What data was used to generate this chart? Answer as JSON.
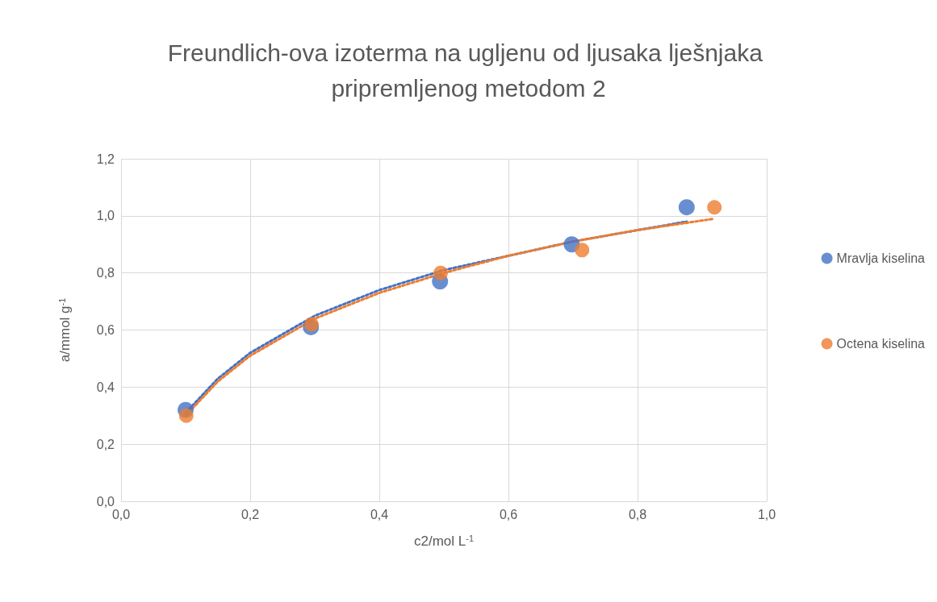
{
  "chart_data": {
    "type": "scatter",
    "title": "Freundlich-ova izoterma na ugljenu od ljusaka lješnjaka pripremljenog metodom 2",
    "xlabel": "c2/mol L$^{-1}$",
    "ylabel": "a/mmol g$^{-1}$",
    "xlim": [
      0,
      1
    ],
    "ylim": [
      0,
      1.2
    ],
    "xticks": [
      {
        "value": 0,
        "label": "0,0"
      },
      {
        "value": 0.2,
        "label": "0,2"
      },
      {
        "value": 0.4,
        "label": "0,4"
      },
      {
        "value": 0.6,
        "label": "0,6"
      },
      {
        "value": 0.8,
        "label": "0,8"
      },
      {
        "value": 1,
        "label": "1,0"
      }
    ],
    "yticks": [
      {
        "value": 0,
        "label": "0,0"
      },
      {
        "value": 0.2,
        "label": "0,2"
      },
      {
        "value": 0.4,
        "label": "0,4"
      },
      {
        "value": 0.6,
        "label": "0,6"
      },
      {
        "value": 0.8,
        "label": "0,8"
      },
      {
        "value": 1,
        "label": "1,0"
      },
      {
        "value": 1.2,
        "label": "1,2"
      }
    ],
    "grid": true,
    "legend": "right",
    "marker": "circle",
    "series": [
      {
        "name": "Mravlja kiselina",
        "color": "#4472c4",
        "x": [
          0.1,
          0.294,
          0.494,
          0.698,
          0.876
        ],
        "values": [
          0.32,
          0.61,
          0.77,
          0.9,
          1.03
        ]
      },
      {
        "name": "Octena kiselina",
        "color": "#ed7d31",
        "x": [
          0.101,
          0.295,
          0.495,
          0.714,
          0.919
        ],
        "values": [
          0.3,
          0.62,
          0.8,
          0.88,
          1.03
        ]
      },
      {
        "type": "line",
        "color": "#4472c4",
        "line_style": "dotted",
        "marker": "none",
        "x": [
          0.1,
          0.15,
          0.2,
          0.3,
          0.4,
          0.5,
          0.6,
          0.7,
          0.8,
          0.876
        ],
        "values": [
          0.31,
          0.43,
          0.52,
          0.65,
          0.74,
          0.81,
          0.86,
          0.91,
          0.95,
          0.98
        ]
      },
      {
        "type": "line",
        "color": "#ed7d31",
        "line_style": "dotted",
        "marker": "none",
        "x": [
          0.1,
          0.15,
          0.2,
          0.3,
          0.4,
          0.5,
          0.6,
          0.7,
          0.8,
          0.919
        ],
        "values": [
          0.3,
          0.42,
          0.51,
          0.64,
          0.73,
          0.8,
          0.86,
          0.91,
          0.95,
          0.99
        ]
      }
    ]
  }
}
